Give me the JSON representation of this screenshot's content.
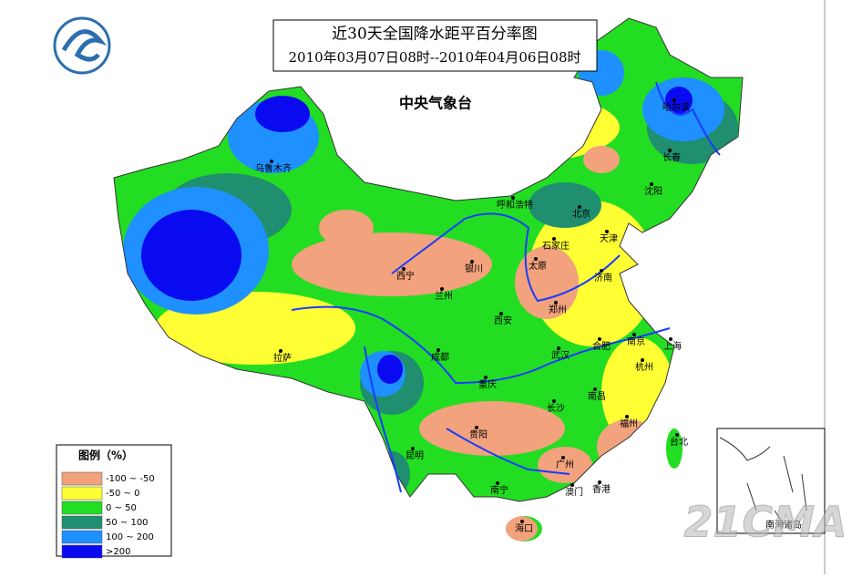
{
  "title": "近30天全国降水距平百分率图",
  "subtitle": "2010年03月07日08时--2010年04月06日08时",
  "agency": "中央气象台",
  "legend": {
    "title": "图例（%）",
    "items": [
      {
        "label": "-100 ~ -50",
        "color": "#f2a27c"
      },
      {
        "label": "-50 ~ 0",
        "color": "#ffff33"
      },
      {
        "label": "0 ~ 50",
        "color": "#22dd22"
      },
      {
        "label": "50 ~ 100",
        "color": "#1f8f6f"
      },
      {
        "label": "100 ~ 200",
        "color": "#1e90ff"
      },
      {
        "label": ">200",
        "color": "#0a0af0"
      }
    ]
  },
  "cities": [
    "乌鲁木齐",
    "呼和浩特",
    "北京",
    "哈尔滨",
    "长春",
    "沈阳",
    "天津",
    "石家庄",
    "太原",
    "济南",
    "西宁",
    "银川",
    "兰州",
    "郑州",
    "西安",
    "南京",
    "上海",
    "合肥",
    "武汉",
    "杭州",
    "成都",
    "拉萨",
    "重庆",
    "南昌",
    "长沙",
    "福州",
    "台北",
    "贵阳",
    "昆明",
    "广州",
    "南宁",
    "澳门",
    "香港",
    "海口"
  ],
  "inset_label": "南海诸岛",
  "watermark": "21CMA"
}
